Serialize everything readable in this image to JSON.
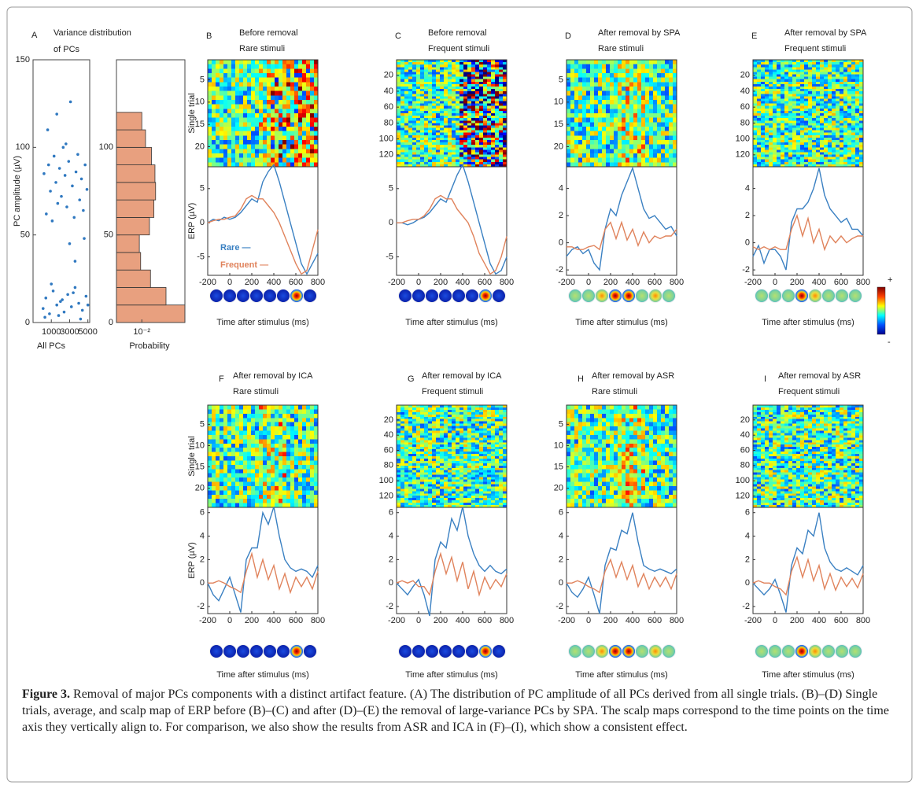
{
  "figure": {
    "panel_a": {
      "label": "A",
      "title": [
        "Variance distribution",
        "of PCs"
      ],
      "scatter": {
        "type": "scatter",
        "ylabel": "PC amplitude (µV)",
        "xlabel": "All PCs",
        "color": "#2f78c0",
        "xlim": [
          -1000,
          5200
        ],
        "ylim": [
          0,
          150
        ],
        "xticks": [
          1000,
          3000,
          5000
        ],
        "yticks": [
          0,
          50,
          100,
          150
        ],
        "x": [
          200,
          450,
          700,
          900,
          1100,
          1300,
          1500,
          1700,
          1900,
          2100,
          2300,
          2500,
          2700,
          2900,
          3100,
          3300,
          3500,
          3700,
          3900,
          4100,
          4300,
          4500,
          4700,
          4900,
          600,
          1600,
          2600,
          3000,
          3600,
          4600,
          100,
          400,
          800,
          1200,
          1600,
          2000,
          2400,
          2800,
          3200,
          3600,
          4000,
          4400,
          4800,
          300,
          1000,
          1800,
          2200,
          3400,
          4200,
          5000
        ],
        "y": [
          85,
          62,
          90,
          75,
          58,
          95,
          80,
          68,
          88,
          72,
          100,
          84,
          66,
          92,
          126,
          78,
          60,
          86,
          96,
          70,
          82,
          64,
          90,
          76,
          110,
          119,
          102,
          45,
          35,
          48,
          8,
          14,
          5,
          18,
          10,
          12,
          6,
          16,
          9,
          20,
          11,
          7,
          15,
          3,
          22,
          4,
          13,
          17,
          2,
          10
        ]
      },
      "histogram": {
        "type": "histogram",
        "xlabel": "Probability",
        "color": "#e8a07f",
        "log_x": true,
        "xlim": [
          0.001,
          0.5
        ],
        "ylim": [
          0,
          150
        ],
        "xticks": [
          {
            "value": 0.01,
            "label": "10⁻²"
          }
        ],
        "yticks": [
          0,
          50,
          100
        ],
        "bins": [
          0,
          10,
          20,
          30,
          40,
          50,
          60,
          70,
          80,
          90,
          100,
          110,
          120
        ],
        "values": [
          0.5,
          0.09,
          0.022,
          0.009,
          0.008,
          0.02,
          0.03,
          0.035,
          0.033,
          0.024,
          0.014,
          0.01
        ]
      }
    },
    "legend": [
      {
        "label": "Rare —",
        "color": "#3a80c2"
      },
      {
        "label": "Frequent —",
        "color": "#e0835c"
      }
    ],
    "heat_ylabel": "Single trial",
    "erp_ylabel": "ERP (µV)",
    "time_label": "Time after stimulus (ms)",
    "colorbar": {
      "top": "+",
      "bottom": "-"
    },
    "panels": [
      {
        "label": "B",
        "title": [
          "Before removal",
          "Rare stimuli"
        ],
        "heat_ylim": [
          0.5,
          24.5
        ],
        "heat_yticks": [
          5,
          10,
          15,
          20
        ],
        "erp_ylim": [
          -7.7,
          8.2
        ],
        "erp_yticks": [
          -5,
          0,
          5
        ],
        "xlim": [
          -200,
          800
        ],
        "xticks": [
          -200,
          0,
          200,
          400,
          600,
          800
        ],
        "x": [
          -200,
          -150,
          -100,
          -50,
          0,
          50,
          100,
          150,
          200,
          250,
          300,
          350,
          400,
          450,
          500,
          550,
          600,
          650,
          700,
          750,
          800
        ],
        "series": [
          {
            "values": [
              0,
              0.5,
              0.3,
              0.8,
              0.5,
              0.8,
              1.5,
              2.5,
              3.5,
              3,
              6,
              7.5,
              8.5,
              6,
              3,
              0,
              -3,
              -6,
              -7.5,
              -6,
              -4.5
            ]
          },
          {
            "values": [
              0,
              0.3,
              0.5,
              0.5,
              0.8,
              1,
              2,
              3.5,
              4,
              3.5,
              3.5,
              2.5,
              1.5,
              0,
              -2,
              -4,
              -6,
              -7.5,
              -7,
              -4,
              -1
            ]
          }
        ]
      },
      {
        "label": "C",
        "title": [
          "Before removal",
          "Frequent stimuli"
        ],
        "heat_ylim": [
          0.5,
          135
        ],
        "heat_yticks": [
          20,
          40,
          60,
          80,
          100,
          120
        ],
        "erp_ylim": [
          -7.7,
          8.2
        ],
        "erp_yticks": [
          -5,
          0,
          5
        ],
        "xlim": [
          -200,
          800
        ],
        "xticks": [
          -200,
          0,
          200,
          400,
          600,
          800
        ],
        "x": [
          -200,
          -150,
          -100,
          -50,
          0,
          50,
          100,
          150,
          200,
          250,
          300,
          350,
          400,
          450,
          500,
          550,
          600,
          650,
          700,
          750,
          800
        ],
        "series": [
          {
            "values": [
              0,
              0,
              -0.3,
              0,
              0.5,
              0.8,
              1.5,
              2.5,
              3.5,
              3,
              5,
              7,
              8.5,
              6,
              3,
              0,
              -3,
              -6,
              -7.5,
              -7,
              -5
            ]
          },
          {
            "values": [
              0,
              0,
              0.3,
              0.5,
              0.5,
              1,
              2,
              3.5,
              4,
              3.5,
              3.5,
              2,
              1,
              0,
              -2,
              -4.5,
              -6,
              -7.5,
              -7,
              -5,
              -2
            ]
          }
        ]
      },
      {
        "label": "D",
        "title": [
          "After removal by SPA",
          "Rare stimuli"
        ],
        "heat_ylim": [
          0.5,
          24.5
        ],
        "heat_yticks": [
          5,
          10,
          15,
          20
        ],
        "erp_ylim": [
          -2.4,
          5.6
        ],
        "erp_yticks": [
          -2,
          0,
          2,
          4
        ],
        "xlim": [
          -200,
          800
        ],
        "xticks": [
          -200,
          0,
          200,
          400,
          600,
          800
        ],
        "x": [
          -200,
          -150,
          -100,
          -50,
          0,
          50,
          100,
          150,
          200,
          250,
          300,
          350,
          400,
          450,
          500,
          550,
          600,
          650,
          700,
          750,
          800
        ],
        "series": [
          {
            "values": [
              -1,
              -0.5,
              -0.3,
              -0.8,
              -0.5,
              -1.5,
              -2,
              1,
              2.5,
              2,
              3.5,
              4.5,
              5.5,
              4,
              2.5,
              1.8,
              2,
              1.5,
              1,
              1.2,
              0.5
            ]
          },
          {
            "values": [
              -0.3,
              -0.3,
              -0.5,
              -0.5,
              -0.3,
              -0.2,
              -0.5,
              1,
              1.5,
              0.3,
              1.5,
              0.2,
              1,
              -0.2,
              0.8,
              0,
              0.5,
              0.3,
              0.5,
              0.5,
              1
            ]
          }
        ]
      },
      {
        "label": "E",
        "title": [
          "After removal by SPA",
          "Frequent stimuli"
        ],
        "heat_ylim": [
          0.5,
          135
        ],
        "heat_yticks": [
          20,
          40,
          60,
          80,
          100,
          120
        ],
        "erp_ylim": [
          -2.4,
          5.6
        ],
        "erp_yticks": [
          -2,
          0,
          2,
          4
        ],
        "xlim": [
          -200,
          800
        ],
        "xticks": [
          -200,
          0,
          200,
          400,
          600,
          800
        ],
        "x": [
          -200,
          -150,
          -100,
          -50,
          0,
          50,
          100,
          150,
          200,
          250,
          300,
          350,
          400,
          450,
          500,
          550,
          600,
          650,
          700,
          750,
          800
        ],
        "series": [
          {
            "values": [
              -1,
              -0.2,
              -1.5,
              -0.5,
              -0.5,
              -1,
              -2,
              1.5,
              2.5,
              2.5,
              3,
              4,
              5.5,
              3.5,
              2.5,
              2,
              1.5,
              1.8,
              1,
              1,
              0.5
            ]
          },
          {
            "values": [
              -0.3,
              -0.5,
              -0.3,
              -0.5,
              -0.3,
              -0.5,
              -0.5,
              1,
              2,
              0.5,
              1.8,
              0,
              1,
              -0.5,
              0.5,
              0,
              0.5,
              0,
              0.3,
              0.5,
              0.5
            ]
          }
        ]
      },
      {
        "label": "F",
        "title": [
          "After removal by ICA",
          "Rare stimuli"
        ],
        "heat_ylim": [
          0.5,
          24.5
        ],
        "heat_yticks": [
          5,
          10,
          15,
          20
        ],
        "erp_ylim": [
          -2.6,
          6.45
        ],
        "erp_yticks": [
          -2,
          0,
          2,
          4,
          6
        ],
        "xlim": [
          -200,
          800
        ],
        "xticks": [
          -200,
          0,
          200,
          400,
          600,
          800
        ],
        "x": [
          -200,
          -150,
          -100,
          -50,
          0,
          50,
          100,
          150,
          200,
          250,
          300,
          350,
          400,
          450,
          500,
          550,
          600,
          650,
          700,
          750,
          800
        ],
        "series": [
          {
            "values": [
              0,
              -1,
              -1.5,
              -0.5,
              0.5,
              -1,
              -2.5,
              2,
              3,
              3,
              6,
              5,
              6.5,
              4,
              2,
              1.3,
              1,
              1.2,
              1,
              0.5,
              1.5
            ]
          },
          {
            "values": [
              0,
              0,
              0.2,
              0,
              -0.3,
              -0.5,
              -0.8,
              1,
              2.5,
              0.5,
              2,
              0.3,
              1.5,
              -0.5,
              0.8,
              -0.8,
              0.5,
              -0.3,
              0.5,
              -0.5,
              1
            ]
          }
        ]
      },
      {
        "label": "G",
        "title": [
          "After removal by ICA",
          "Frequent stimuli"
        ],
        "heat_ylim": [
          0.5,
          135
        ],
        "heat_yticks": [
          20,
          40,
          60,
          80,
          100,
          120
        ],
        "erp_ylim": [
          -2.6,
          6.45
        ],
        "erp_yticks": [
          -2,
          0,
          2,
          4,
          6
        ],
        "xlim": [
          -200,
          800
        ],
        "xticks": [
          -200,
          0,
          200,
          400,
          600,
          800
        ],
        "x": [
          -200,
          -150,
          -100,
          -50,
          0,
          50,
          100,
          150,
          200,
          250,
          300,
          350,
          400,
          450,
          500,
          550,
          600,
          650,
          700,
          750,
          800
        ],
        "series": [
          {
            "values": [
              0,
              -0.5,
              -1,
              -0.3,
              0.3,
              -1,
              -2.8,
              2,
              3.5,
              3,
              5.5,
              4.5,
              6.5,
              4,
              2.5,
              1.5,
              1,
              1.5,
              1,
              0.8,
              1.2
            ]
          },
          {
            "values": [
              0,
              0.2,
              0,
              0.2,
              -0.3,
              -0.3,
              -1,
              1,
              2.5,
              0.8,
              2.2,
              0.2,
              1.8,
              -0.5,
              1,
              -1,
              0.5,
              -0.5,
              0.3,
              -0.3,
              0.8
            ]
          }
        ]
      },
      {
        "label": "H",
        "title": [
          "After removal by ASR",
          "Rare stimuli"
        ],
        "heat_ylim": [
          0.5,
          24.5
        ],
        "heat_yticks": [
          5,
          10,
          15,
          20
        ],
        "erp_ylim": [
          -2.6,
          6.45
        ],
        "erp_yticks": [
          -2,
          0,
          2,
          4,
          6
        ],
        "xlim": [
          -200,
          800
        ],
        "xticks": [
          -200,
          0,
          200,
          400,
          600,
          800
        ],
        "x": [
          -200,
          -150,
          -100,
          -50,
          0,
          50,
          100,
          150,
          200,
          250,
          300,
          350,
          400,
          450,
          500,
          550,
          600,
          650,
          700,
          750,
          800
        ],
        "series": [
          {
            "values": [
              0,
              -0.8,
              -1.2,
              -0.5,
              0.5,
              -1,
              -2.6,
              1.5,
              3,
              2.8,
              4.5,
              4.2,
              6,
              3.5,
              1.5,
              1.2,
              1,
              1.2,
              1,
              0.8,
              1.2
            ]
          },
          {
            "values": [
              0,
              0,
              0.2,
              0,
              -0.3,
              -0.5,
              -0.8,
              1,
              2,
              0.5,
              1.8,
              0.3,
              1.5,
              -0.3,
              0.8,
              -0.5,
              0.5,
              -0.3,
              0.5,
              -0.5,
              0.8
            ]
          }
        ]
      },
      {
        "label": "I",
        "title": [
          "After removal by ASR",
          "Frequent stimuli"
        ],
        "heat_ylim": [
          0.5,
          135
        ],
        "heat_yticks": [
          20,
          40,
          60,
          80,
          100,
          120
        ],
        "erp_ylim": [
          -2.6,
          6.45
        ],
        "erp_yticks": [
          -2,
          0,
          2,
          4,
          6
        ],
        "xlim": [
          -200,
          800
        ],
        "xticks": [
          -200,
          0,
          200,
          400,
          600,
          800
        ],
        "x": [
          -200,
          -150,
          -100,
          -50,
          0,
          50,
          100,
          150,
          200,
          250,
          300,
          350,
          400,
          450,
          500,
          550,
          600,
          650,
          700,
          750,
          800
        ],
        "series": [
          {
            "values": [
              0,
              -0.5,
              -1,
              -0.5,
              0.3,
              -1,
              -2.5,
              1.5,
              3,
              2.5,
              4.5,
              4,
              6,
              3,
              1.8,
              1.2,
              1,
              1.3,
              1,
              0.7,
              1.5
            ]
          },
          {
            "values": [
              0,
              0.2,
              0,
              0,
              -0.3,
              -0.5,
              -1,
              1,
              2.2,
              0.5,
              2,
              0.2,
              1.5,
              -0.5,
              0.8,
              -0.6,
              0.5,
              -0.3,
              0.4,
              -0.4,
              0.8
            ]
          }
        ]
      }
    ],
    "caption": {
      "label": "Figure 3.",
      "text": " Removal of major PCs components with a distinct artifact feature. (A) The distribution of PC amplitude of all PCs derived from all single trials. (B)–(D) Single trials, average, and scalp map of ERP before (B)–(C) and after (D)–(E) the removal of large-variance PCs by SPA. The scalp maps correspond to the time points on the time axis they vertically align to. For comparison, we also show the results from ASR and ICA in (F)–(I), which show a consistent effect."
    }
  }
}
